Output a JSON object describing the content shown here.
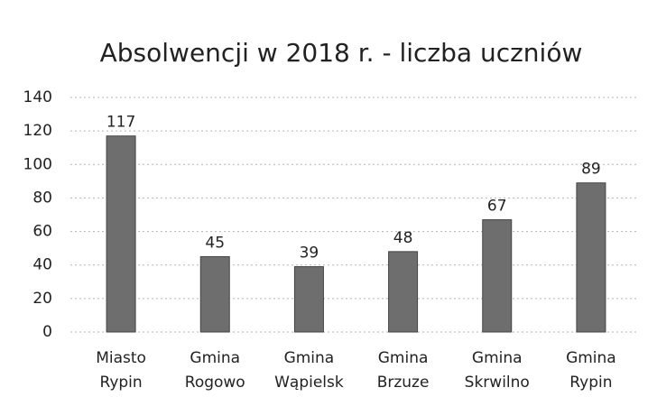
{
  "chart_data": {
    "type": "bar",
    "title": "Absolwencji w 2018 r. - liczba uczniów",
    "categories": [
      "Miasto Rypin",
      "Gmina Rogowo",
      "Gmina Wąpielsk",
      "Gmina Brzuze",
      "Gmina Skrwilno",
      "Gmina Rypin"
    ],
    "values": [
      117,
      45,
      39,
      48,
      67,
      89
    ],
    "color": "#6e6e6e",
    "ylim": [
      0,
      140
    ],
    "yticks": [
      0,
      20,
      40,
      60,
      80,
      100,
      120,
      140
    ],
    "grid": true
  }
}
